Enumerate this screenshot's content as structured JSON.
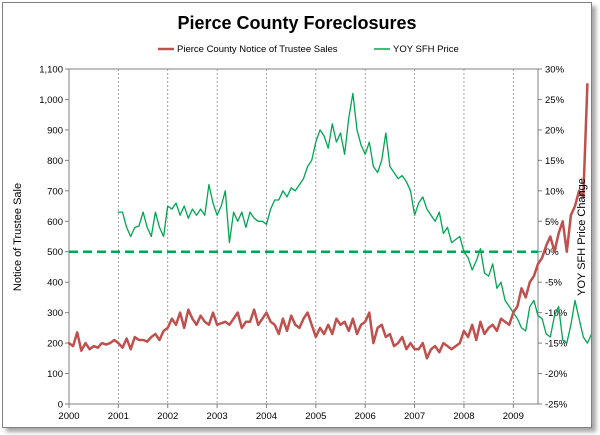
{
  "chart_data": {
    "type": "line",
    "title": "Pierce County Foreclosures",
    "legend_position": "top",
    "x_tick_labels": [
      "2000",
      "2001",
      "2002",
      "2003",
      "2004",
      "2005",
      "2006",
      "2007",
      "2008",
      "2009"
    ],
    "xlim": [
      2000,
      2009.5
    ],
    "y_left": {
      "label": "Notice of Trustee Sale",
      "range": [
        0,
        1100
      ],
      "tick_labels": [
        "0",
        "100",
        "200",
        "300",
        "400",
        "500",
        "600",
        "700",
        "800",
        "900",
        "1,000",
        "1,100"
      ]
    },
    "y_right": {
      "label": "YOY SFH Price Change",
      "range": [
        -25,
        30
      ],
      "tick_labels": [
        "-25%",
        "-20%",
        "-15%",
        "-10%",
        "-5%",
        "0%",
        "5%",
        "10%",
        "15%",
        "20%",
        "25%",
        "30%"
      ]
    },
    "zero_reference_line": {
      "axis": "right",
      "value": 0,
      "color": "#00a651",
      "dashed": true
    },
    "grid": {
      "vertical": true,
      "horizontal": false
    },
    "series": [
      {
        "name": "Pierce County Notice of Trustee Sales",
        "axis": "left",
        "color": "#c0504d",
        "x_start": 2000.0,
        "x_step_months": 1,
        "values": [
          200,
          190,
          235,
          175,
          200,
          180,
          190,
          185,
          200,
          195,
          200,
          210,
          200,
          185,
          215,
          180,
          220,
          210,
          210,
          205,
          220,
          230,
          210,
          240,
          250,
          280,
          260,
          300,
          250,
          310,
          280,
          260,
          290,
          270,
          260,
          300,
          260,
          265,
          270,
          260,
          280,
          300,
          250,
          270,
          270,
          310,
          260,
          280,
          300,
          270,
          260,
          230,
          280,
          240,
          290,
          260,
          250,
          280,
          300,
          260,
          220,
          250,
          230,
          260,
          230,
          280,
          260,
          270,
          240,
          280,
          230,
          260,
          270,
          300,
          200,
          250,
          260,
          220,
          230,
          190,
          200,
          220,
          180,
          200,
          180,
          180,
          200,
          150,
          180,
          190,
          170,
          200,
          190,
          180,
          190,
          200,
          240,
          220,
          260,
          210,
          270,
          230,
          250,
          260,
          240,
          280,
          270,
          260,
          300,
          320,
          380,
          350,
          400,
          420,
          460,
          480,
          520,
          550,
          500,
          560,
          600,
          500,
          620,
          650,
          700,
          680,
          1050
        ]
      },
      {
        "name": "YOY SFH Price",
        "axis": "right",
        "color": "#00a651",
        "x_start": 2001.0,
        "x_step_months": 1,
        "values": [
          6.5,
          6.5,
          4,
          2.5,
          4,
          4.2,
          6.5,
          4,
          2.5,
          6.5,
          4,
          2.5,
          7.5,
          7,
          8,
          6,
          7.5,
          5.5,
          7,
          6,
          7,
          6,
          11,
          8,
          6,
          7.5,
          10,
          1.5,
          6.5,
          5,
          6.5,
          4,
          6.5,
          5.5,
          5,
          5,
          4.5,
          7,
          8.5,
          8.5,
          10,
          9,
          10.5,
          10,
          11,
          12,
          14,
          15,
          18,
          20,
          19,
          17,
          21,
          18,
          19.5,
          16,
          22,
          26,
          20,
          17.5,
          16,
          18,
          14,
          13,
          15,
          19.5,
          14,
          13,
          12,
          12.5,
          11.5,
          10,
          6,
          8,
          9,
          7,
          6,
          5,
          6.5,
          3,
          4,
          1.5,
          2,
          2.5,
          0,
          -1,
          -3,
          -1.5,
          0.5,
          -3.5,
          -4,
          -2,
          -6,
          -5,
          -8,
          -9,
          -10,
          -11,
          -12.5,
          -13,
          -9,
          -8,
          -10.5,
          -11,
          -13.5,
          -14,
          -10.5,
          -9,
          -14.5,
          -15,
          -12,
          -8,
          -11,
          -14,
          -15,
          -13.5,
          -12.5
        ]
      }
    ]
  }
}
